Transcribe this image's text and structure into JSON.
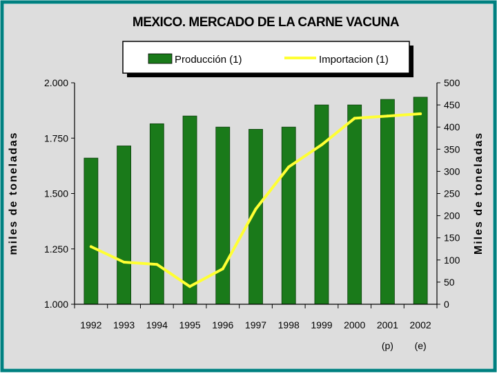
{
  "chart_data": {
    "type": "bar",
    "title": "MEXICO. MERCADO DE LA CARNE VACUNA",
    "categories": [
      "1992",
      "1993",
      "1994",
      "1995",
      "1996",
      "1997",
      "1998",
      "1999",
      "2000",
      "2001",
      "2002"
    ],
    "category_sublabels": [
      "",
      "",
      "",
      "",
      "",
      "",
      "",
      "",
      "",
      "(p)",
      "(e)"
    ],
    "series": [
      {
        "name": "Producción (1)",
        "type": "bar",
        "axis": "left",
        "color": "#1a7a1a",
        "values": [
          1660,
          1715,
          1815,
          1850,
          1800,
          1790,
          1800,
          1900,
          1900,
          1925,
          1935
        ]
      },
      {
        "name": "Importacion (1)",
        "type": "line",
        "axis": "right",
        "color": "#ffff33",
        "values": [
          130,
          95,
          90,
          40,
          80,
          215,
          310,
          360,
          420,
          425,
          430
        ]
      }
    ],
    "ylabel": "miles de toneladas",
    "y2label": "Miles de toneladas",
    "ylim": [
      1000,
      2000
    ],
    "y2lim": [
      0,
      500
    ],
    "yticks": [
      "1.000",
      "1.250",
      "1.500",
      "1.750",
      "2.000"
    ],
    "y2ticks": [
      "0",
      "50",
      "100",
      "150",
      "200",
      "250",
      "300",
      "350",
      "400",
      "450",
      "500"
    ],
    "legend_position": "top",
    "grid": false,
    "background": "#dddddd",
    "frame_color": "#008080"
  }
}
